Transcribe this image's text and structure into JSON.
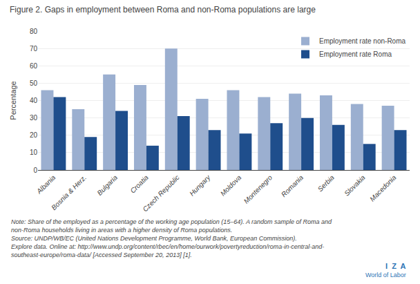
{
  "chart_data": {
    "type": "bar",
    "title": "Figure 2. Gaps in employment between Roma and non-Roma populations are large",
    "categories": [
      "Albania",
      "Bosnia & Herz.",
      "Bulgaria",
      "Croatia",
      "Czech Republic",
      "Hungary",
      "Moldova",
      "Montenegro",
      "Romania",
      "Serbia",
      "Slovakia",
      "Macedonia"
    ],
    "series": [
      {
        "name": "Employment rate non-Roma",
        "color": "#9BAFD0",
        "values": [
          46,
          35,
          55,
          49,
          70,
          41,
          46,
          42,
          44,
          43,
          38,
          37
        ]
      },
      {
        "name": "Employment rate Roma",
        "color": "#1F4E8C",
        "values": [
          42,
          19,
          34,
          14,
          31,
          23,
          21,
          27,
          30,
          26,
          15,
          23
        ]
      }
    ],
    "ylabel": "Percentage",
    "ylim": [
      0,
      80
    ],
    "yticks": [
      0,
      10,
      20,
      30,
      40,
      50,
      60,
      70,
      80
    ],
    "grid": true,
    "legend": "upper right",
    "annotations": [
      "Note: Share of the employed as a percentage of the working age population (15–64). A random sample of Roma and",
      "non-Roma households living in areas with a higher density of Roma populations.",
      "Source: UNDP/WB/EC (United Nations Development Programme, World Bank, European Commission).",
      "Explore data. Online at: http://www.undp.org/content/rbec/en/home/ourwork/povertyreduction/roma-in-central-and-",
      "southeast-europe/roma-data/ [Accessed September 20, 2013] [1].",
      "I  Z  A",
      "World of Labor"
    ]
  }
}
